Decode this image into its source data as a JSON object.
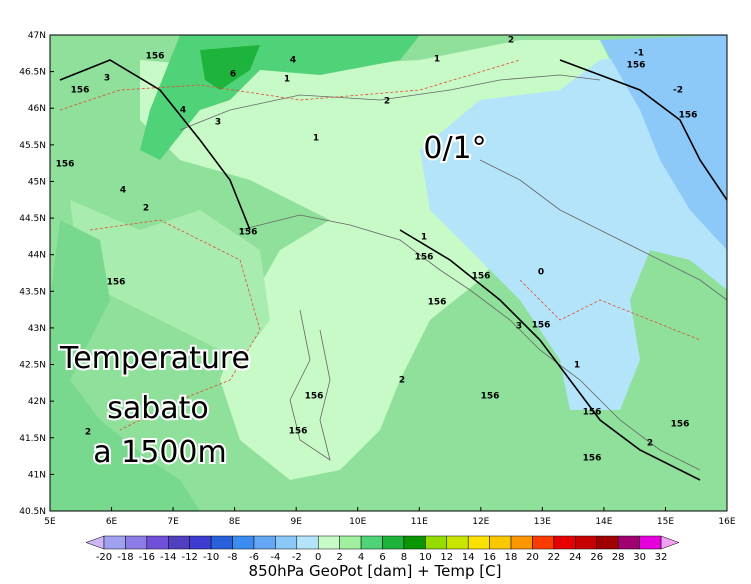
{
  "map": {
    "title": "850hPa GeoPot [dam] + Temp [C]",
    "overlay_value": "0/1°",
    "overlay_caption": [
      "Temperature",
      "sabato",
      "a 1500m"
    ],
    "lat_labels": [
      "47N",
      "46.5N",
      "46N",
      "45.5N",
      "45N",
      "44.5N",
      "44N",
      "43.5N",
      "43N",
      "42.5N",
      "42N",
      "41.5N",
      "41N",
      "40.5N"
    ],
    "lon_labels": [
      "5E",
      "6E",
      "7E",
      "8E",
      "9E",
      "10E",
      "11E",
      "12E",
      "13E",
      "14E",
      "15E",
      "16E"
    ],
    "colorbar": {
      "ticks": [
        -20,
        -18,
        -16,
        -14,
        -12,
        -10,
        -8,
        -6,
        -4,
        -2,
        0,
        2,
        4,
        6,
        8,
        10,
        12,
        14,
        16,
        18,
        20,
        22,
        24,
        26,
        28,
        30,
        32
      ],
      "colors": [
        "#a0a0f0",
        "#8c7ce8",
        "#7050d8",
        "#5040c0",
        "#3c3cd0",
        "#2860dc",
        "#3c8cf0",
        "#64a8f5",
        "#8cc8f8",
        "#b4e4fa",
        "#c8fac8",
        "#a0f0a0",
        "#50d278",
        "#1eb43c",
        "#0a9600",
        "#96dc00",
        "#c8e600",
        "#fae100",
        "#fac800",
        "#fa9600",
        "#fa3c00",
        "#e60000",
        "#c80000",
        "#a00000",
        "#a00070",
        "#e600dc"
      ],
      "low_color": "#d0b4f5",
      "high_color": "#f0a0f0"
    },
    "contour_labels": [
      "156",
      "156",
      "156",
      "156",
      "156",
      "156",
      "156",
      "156",
      "156",
      "156",
      "156",
      "156",
      "156",
      "156",
      "156",
      "156",
      "156",
      "1",
      "1",
      "1",
      "1",
      "1",
      "2",
      "2",
      "2",
      "2",
      "2",
      "2",
      "3",
      "3",
      "3",
      "4",
      "4",
      "4",
      "0",
      "-1",
      "-2",
      "6"
    ]
  }
}
